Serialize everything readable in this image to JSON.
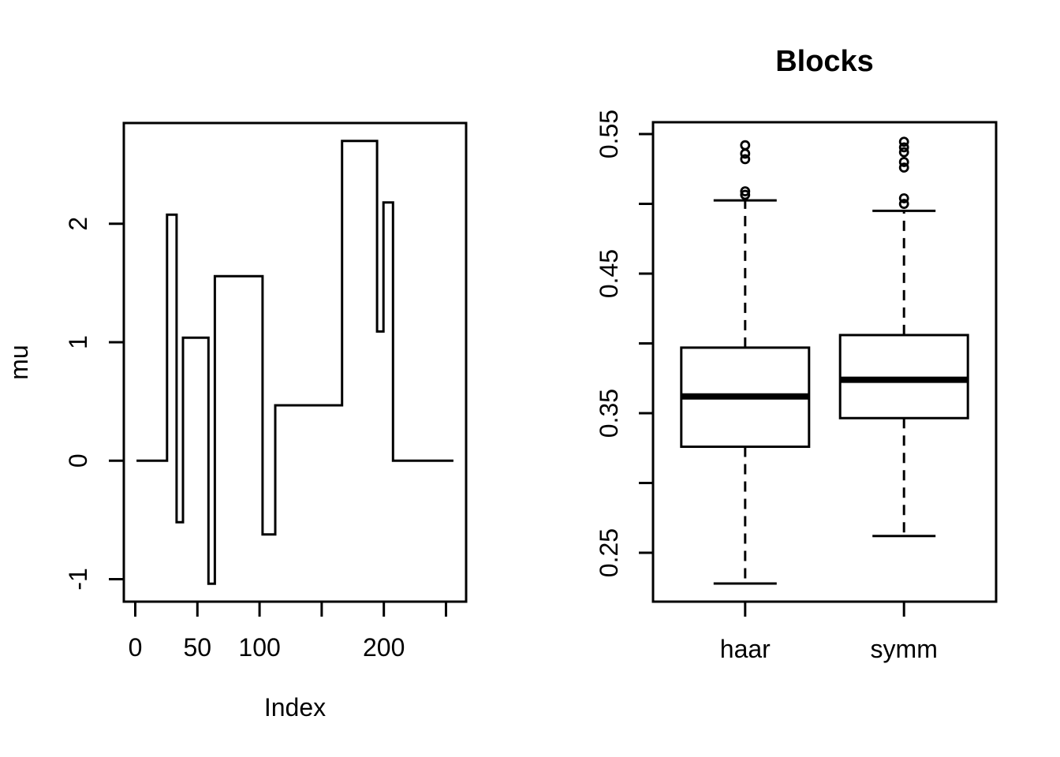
{
  "figure": {
    "background": "#ffffff",
    "foreground": "#000000"
  },
  "chart_data": [
    {
      "type": "line",
      "title": "",
      "xlabel": "Index",
      "ylabel": "mu",
      "line_style": "step",
      "xlim": [
        -9.2,
        266.2
      ],
      "ylim": [
        -1.19,
        2.85
      ],
      "grid": false,
      "xticks": {
        "positions": [
          0,
          50,
          100,
          150,
          200,
          250
        ],
        "labels": [
          "0",
          "50",
          "100",
          "",
          "200",
          ""
        ]
      },
      "yticks": {
        "positions": [
          -1,
          0,
          1,
          2
        ],
        "labels": [
          "-1",
          "0",
          "1",
          "2"
        ]
      },
      "segments": [
        {
          "x0": 1,
          "x1": 25.6,
          "y": 0
        },
        {
          "x0": 25.6,
          "x1": 33.28,
          "y": 2.076
        },
        {
          "x0": 33.28,
          "x1": 38.4,
          "y": -0.519
        },
        {
          "x0": 38.4,
          "x1": 58.88,
          "y": 1.038
        },
        {
          "x0": 58.88,
          "x1": 64,
          "y": -1.038
        },
        {
          "x0": 64,
          "x1": 102.4,
          "y": 1.557
        },
        {
          "x0": 102.4,
          "x1": 112.64,
          "y": -0.623
        },
        {
          "x0": 112.64,
          "x1": 166.4,
          "y": 0.467
        },
        {
          "x0": 166.4,
          "x1": 194.56,
          "y": 2.699
        },
        {
          "x0": 194.56,
          "x1": 199.68,
          "y": 1.09
        },
        {
          "x0": 199.68,
          "x1": 207.36,
          "y": 2.18
        },
        {
          "x0": 207.36,
          "x1": 256,
          "y": 0
        }
      ]
    },
    {
      "type": "boxplot",
      "title": "Blocks",
      "xlabel": "",
      "ylabel": "",
      "categories": [
        "haar",
        "symm"
      ],
      "ylim": [
        0.215,
        0.5585
      ],
      "grid": false,
      "yticks": {
        "positions": [
          0.25,
          0.3,
          0.35,
          0.4,
          0.45,
          0.5,
          0.55
        ],
        "labels": [
          "0.25",
          "",
          "0.35",
          "",
          "0.45",
          "",
          "0.55"
        ]
      },
      "boxes": [
        {
          "label": "haar",
          "q1": 0.326,
          "median": 0.362,
          "q3": 0.397,
          "whisker_low": 0.228,
          "whisker_high": 0.5025,
          "outliers": [
            0.5065,
            0.509,
            0.532,
            0.536,
            0.542
          ]
        },
        {
          "label": "symm",
          "q1": 0.3465,
          "median": 0.374,
          "q3": 0.406,
          "whisker_low": 0.262,
          "whisker_high": 0.495,
          "outliers": [
            0.5,
            0.504,
            0.526,
            0.53,
            0.537,
            0.5405,
            0.5445
          ]
        }
      ]
    }
  ]
}
